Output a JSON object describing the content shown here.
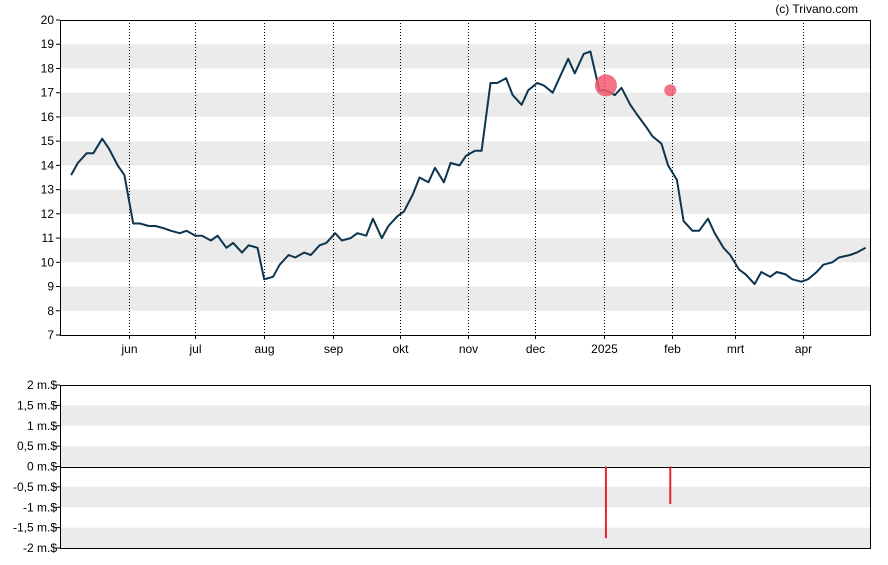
{
  "credit": "(c) Trivano.com",
  "colors": {
    "price_line": "#0d3550",
    "band": "#ebebeb",
    "grid": "#000000",
    "marker_fill": "#f25a6e",
    "volume_bar": "#e8252e",
    "axis": "#000000"
  },
  "chart_data": [
    {
      "type": "line",
      "grid": true,
      "x_ticks": [
        "jun",
        "jul",
        "aug",
        "sep",
        "okt",
        "nov",
        "dec",
        "2025",
        "feb",
        "mrt",
        "apr"
      ],
      "y_ticks": [
        "20",
        "19",
        "18",
        "17",
        "16",
        "15",
        "14",
        "13",
        "12",
        "11",
        "10",
        "9",
        "8",
        "7"
      ],
      "ylim": [
        7,
        20
      ],
      "x": [
        "2024-05-06",
        "2024-05-09",
        "2024-05-13",
        "2024-05-16",
        "2024-05-20",
        "2024-05-23",
        "2024-05-27",
        "2024-05-30",
        "2024-06-03",
        "2024-06-06",
        "2024-06-10",
        "2024-06-13",
        "2024-06-17",
        "2024-06-20",
        "2024-06-24",
        "2024-06-27",
        "2024-07-01",
        "2024-07-04",
        "2024-07-08",
        "2024-07-11",
        "2024-07-15",
        "2024-07-18",
        "2024-07-22",
        "2024-07-25",
        "2024-07-29",
        "2024-08-01",
        "2024-08-05",
        "2024-08-08",
        "2024-08-12",
        "2024-08-15",
        "2024-08-19",
        "2024-08-22",
        "2024-08-26",
        "2024-08-29",
        "2024-09-02",
        "2024-09-05",
        "2024-09-09",
        "2024-09-12",
        "2024-09-16",
        "2024-09-19",
        "2024-09-23",
        "2024-09-26",
        "2024-09-30",
        "2024-10-03",
        "2024-10-07",
        "2024-10-10",
        "2024-10-14",
        "2024-10-17",
        "2024-10-21",
        "2024-10-24",
        "2024-10-28",
        "2024-10-31",
        "2024-11-04",
        "2024-11-07",
        "2024-11-11",
        "2024-11-14",
        "2024-11-18",
        "2024-11-21",
        "2024-11-25",
        "2024-11-28",
        "2024-12-02",
        "2024-12-05",
        "2024-12-09",
        "2024-12-12",
        "2024-12-16",
        "2024-12-19",
        "2024-12-23",
        "2024-12-26",
        "2024-12-30",
        "2025-01-02",
        "2025-01-06",
        "2025-01-09",
        "2025-01-13",
        "2025-01-16",
        "2025-01-20",
        "2025-01-23",
        "2025-01-27",
        "2025-01-30",
        "2025-02-03",
        "2025-02-06",
        "2025-02-10",
        "2025-02-13",
        "2025-02-17",
        "2025-02-20",
        "2025-02-24",
        "2025-02-27",
        "2025-03-03",
        "2025-03-06",
        "2025-03-10",
        "2025-03-13",
        "2025-03-17",
        "2025-03-20",
        "2025-03-24",
        "2025-03-27",
        "2025-03-31",
        "2025-04-03",
        "2025-04-07",
        "2025-04-10",
        "2025-04-14",
        "2025-04-17",
        "2025-04-22",
        "2025-04-25",
        "2025-04-29"
      ],
      "values": [
        13.6,
        14.1,
        14.5,
        14.5,
        15.1,
        14.7,
        14.0,
        13.6,
        11.6,
        11.6,
        11.5,
        11.5,
        11.4,
        11.3,
        11.2,
        11.3,
        11.1,
        11.1,
        10.9,
        11.1,
        10.6,
        10.8,
        10.4,
        10.7,
        10.6,
        9.3,
        9.4,
        9.9,
        10.3,
        10.2,
        10.4,
        10.3,
        10.7,
        10.8,
        11.2,
        10.9,
        11.0,
        11.2,
        11.1,
        11.8,
        11.0,
        11.5,
        11.9,
        12.1,
        12.8,
        13.5,
        13.3,
        13.9,
        13.3,
        14.1,
        14.0,
        14.4,
        14.6,
        14.6,
        17.4,
        17.4,
        17.6,
        16.9,
        16.5,
        17.1,
        17.4,
        17.3,
        17.0,
        17.6,
        18.4,
        17.8,
        18.6,
        18.7,
        17.1,
        17.1,
        16.9,
        17.2,
        16.5,
        16.1,
        15.6,
        15.2,
        14.9,
        14.0,
        13.4,
        11.7,
        11.3,
        11.3,
        11.8,
        11.2,
        10.6,
        10.3,
        9.7,
        9.5,
        9.1,
        9.6,
        9.4,
        9.6,
        9.5,
        9.3,
        9.2,
        9.3,
        9.6,
        9.9,
        10.0,
        10.2,
        10.3,
        10.4,
        10.6
      ],
      "markers": [
        {
          "x": "2025-01-02",
          "y": 17.3
        },
        {
          "x": "2025-01-31",
          "y": 17.1
        }
      ]
    },
    {
      "type": "bar",
      "grid": true,
      "y_ticks": [
        "2 m.$",
        "1,5 m.$",
        "1 m.$",
        "0,5 m.$",
        "0 m.$",
        "-0,5 m.$",
        "-1 m.$",
        "-1,5 m.$",
        "-2 m.$"
      ],
      "ylim": [
        -2,
        2
      ],
      "x": [
        "2025-01-02",
        "2025-01-31"
      ],
      "values": [
        -1.76,
        -0.92
      ]
    }
  ]
}
